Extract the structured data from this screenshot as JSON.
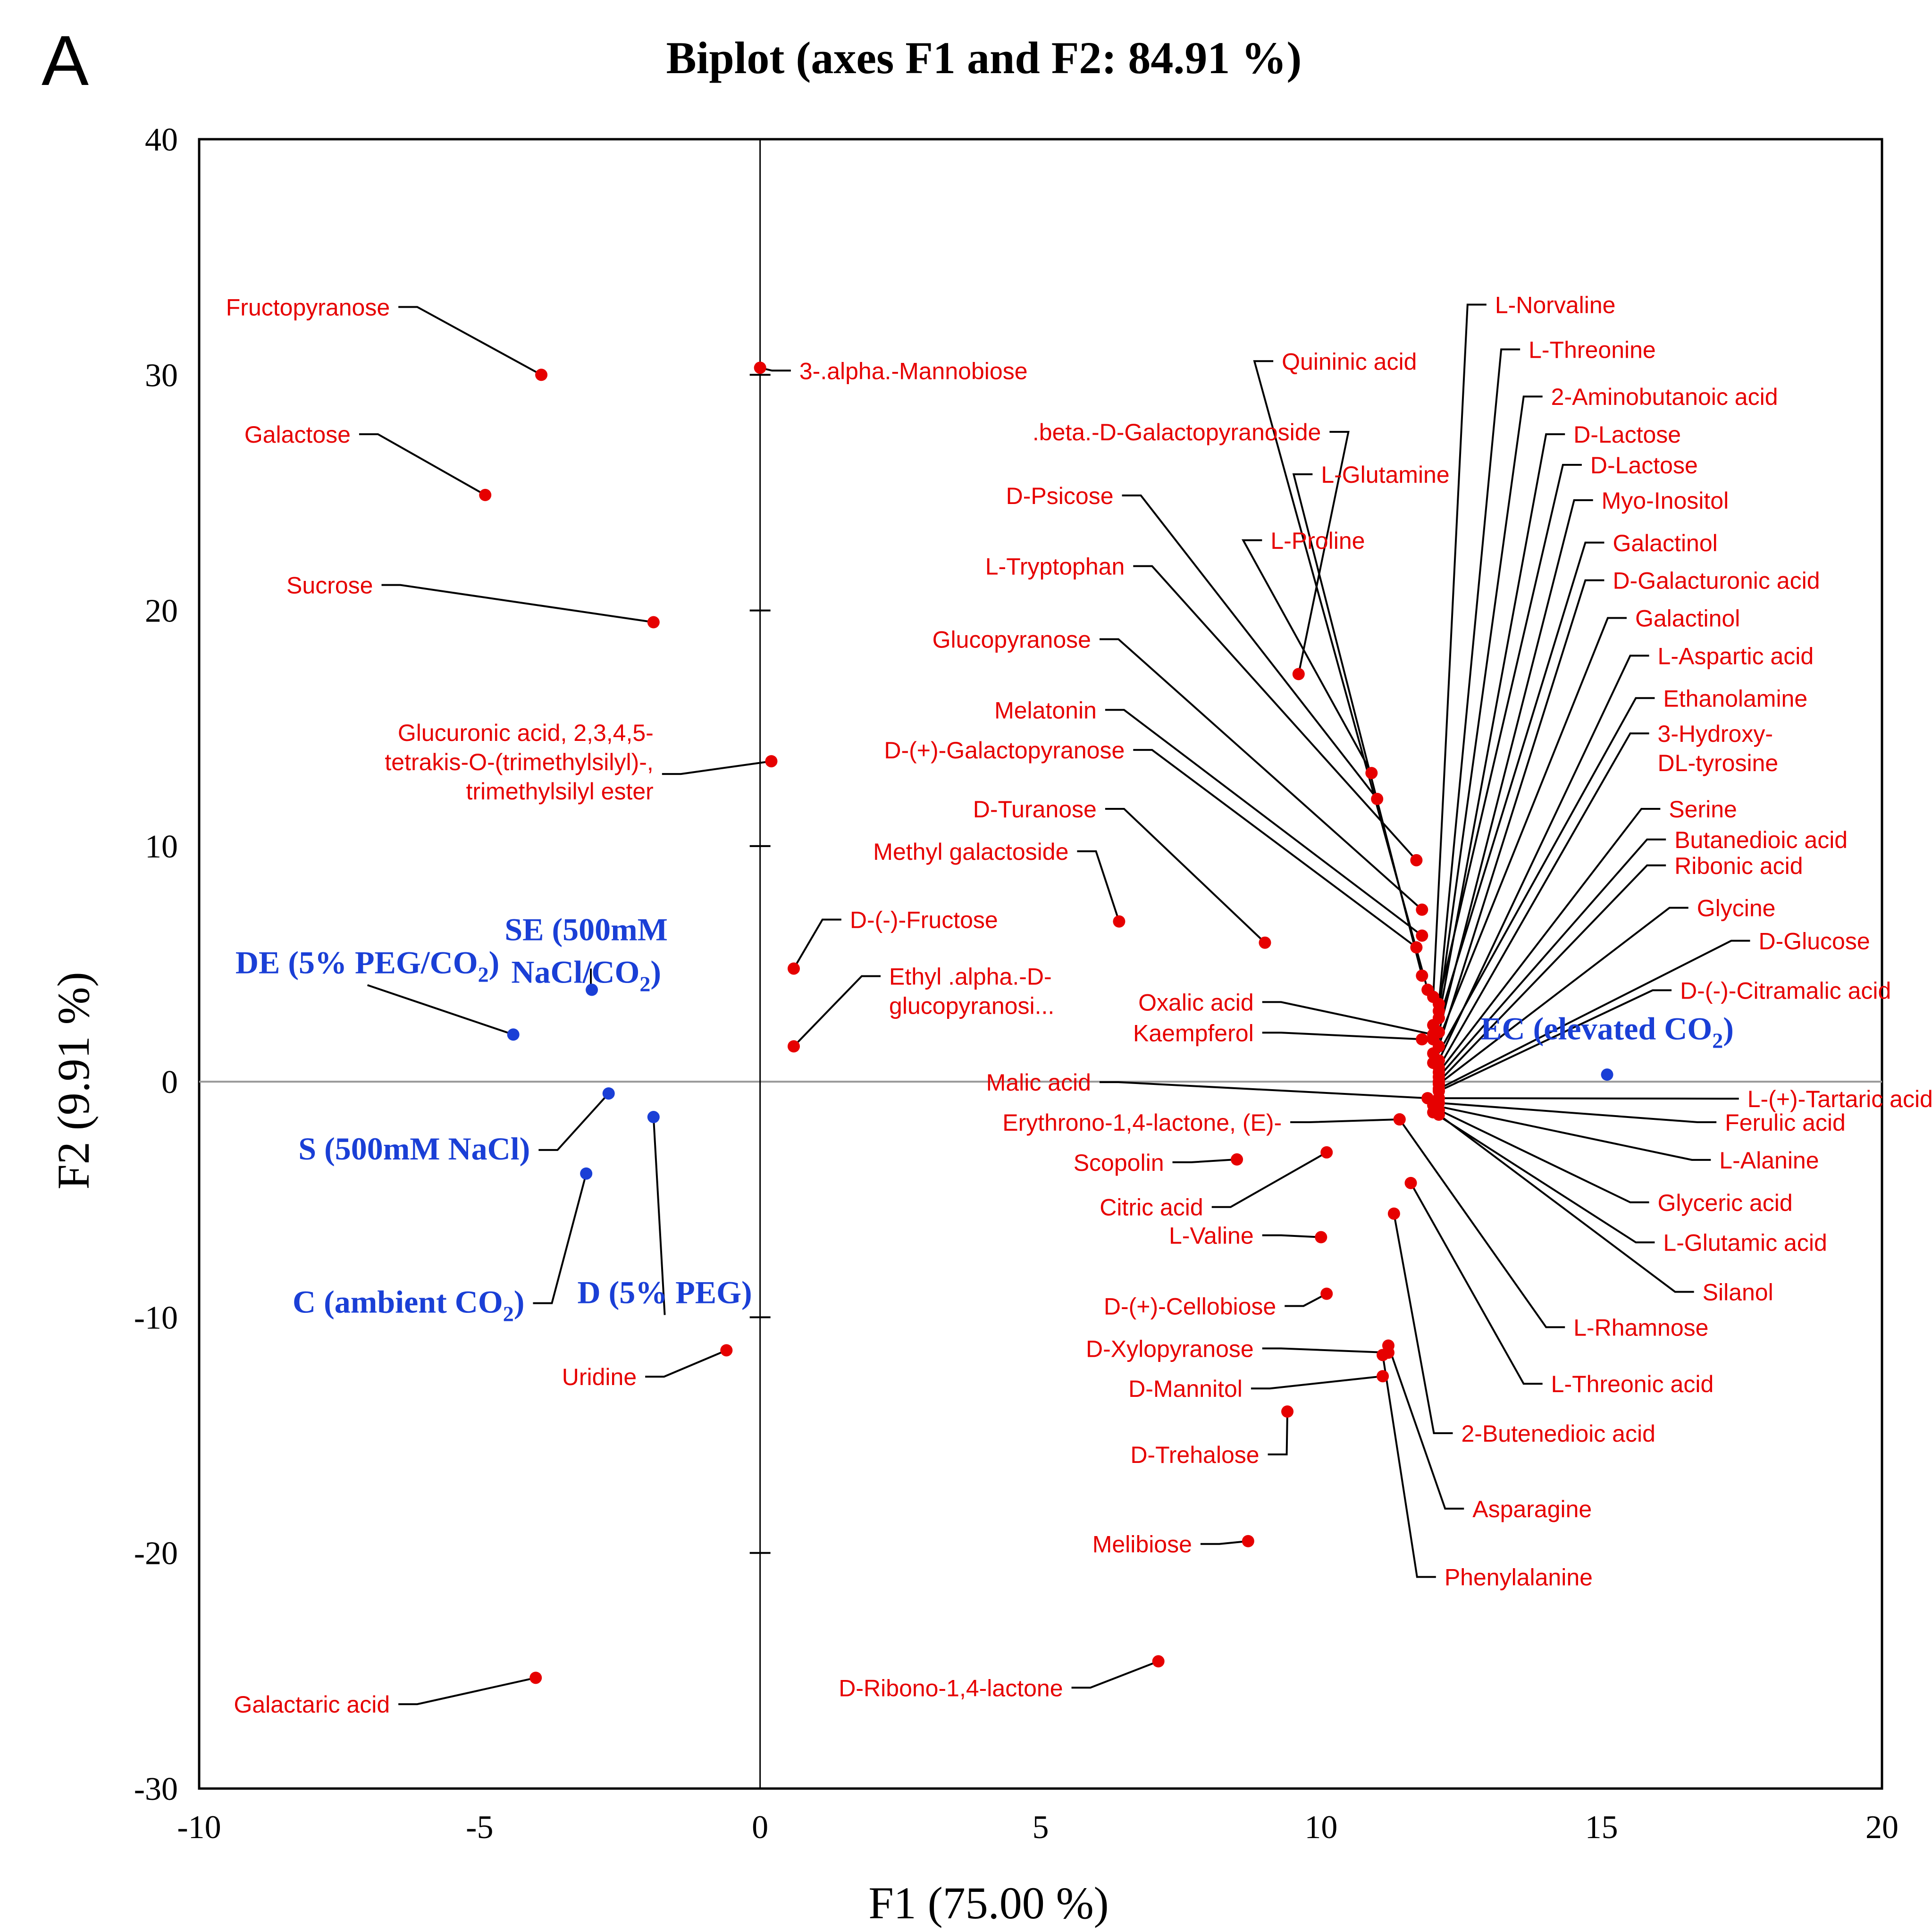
{
  "panel_letter": "A",
  "chart_data": {
    "type": "scatter",
    "title": "Biplot (axes F1 and F2: 84.91 %)",
    "xlabel": "F1 (75.00 %)",
    "ylabel": "F2 (9.91 %)",
    "xlim": [
      -10,
      20
    ],
    "ylim": [
      -30,
      40
    ],
    "xticks": [
      -10,
      -5,
      0,
      5,
      10,
      15,
      20
    ],
    "yticks": [
      -30,
      -20,
      -10,
      0,
      10,
      20,
      30,
      40
    ],
    "colors": {
      "variables": "#e60000",
      "observations": "#1a3fd6",
      "axes": "#000000",
      "zero_line": "#9a9a9a"
    },
    "observations": [
      {
        "name": "EC (elevated CO2)",
        "lines": [
          "EC (elevated CO",
          "2",
          ")"
        ],
        "x": 15.1,
        "y": 0.3,
        "lx": 15.1,
        "ly": 1.8,
        "anchor": "middle"
      },
      {
        "name": "SE (500mM NaCl/CO2)",
        "lines": [
          "SE (500mM",
          "NaCl/CO",
          "2",
          ")"
        ],
        "x": -3.0,
        "y": 3.9,
        "lx": -3.1,
        "ly": 6.0,
        "anchor": "middle"
      },
      {
        "name": "DE (5% PEG/CO2)",
        "lines": [
          "DE (5% PEG/CO",
          "2",
          ")"
        ],
        "x": -4.4,
        "y": 2.0,
        "lx": -7.0,
        "ly": 4.6,
        "anchor": "middle"
      },
      {
        "name": "S (500mM NaCl)",
        "lines": [
          "S (500mM NaCl)"
        ],
        "x": -2.7,
        "y": -0.5,
        "lx": -4.1,
        "ly": -3.3,
        "anchor": "end"
      },
      {
        "name": "D (5% PEG)",
        "lines": [
          "D (5% PEG)"
        ],
        "x": -1.9,
        "y": -1.5,
        "lx": -1.7,
        "ly": -9.4,
        "anchor": "middle"
      },
      {
        "name": "C (ambient CO2)",
        "lines": [
          "C (ambient CO",
          "2",
          ")"
        ],
        "x": -3.1,
        "y": -3.9,
        "lx": -4.2,
        "ly": -9.8,
        "anchor": "end"
      }
    ],
    "variables": [
      {
        "name": "Fructopyranose",
        "x": -3.9,
        "y": 30.0,
        "lx": -6.6,
        "ly": 32.6,
        "anchor": "end"
      },
      {
        "name": "Galactose",
        "x": -4.9,
        "y": 24.9,
        "lx": -7.3,
        "ly": 27.2,
        "anchor": "end"
      },
      {
        "name": "Sucrose",
        "x": -1.9,
        "y": 19.5,
        "lx": -6.9,
        "ly": 20.8,
        "anchor": "end"
      },
      {
        "name": "3-.alpha.-Mannobiose",
        "x": 0.0,
        "y": 30.3,
        "lx": 0.7,
        "ly": 29.9,
        "anchor": "start"
      },
      {
        "name": "Glucuronic acid, 2,3,4,5-tetrakis-O-(trimethylsilyl)-, trimethylsilyl ester",
        "lines": [
          "Glucuronic acid, 2,3,4,5-",
          "tetrakis-O-(trimethylsilyl)-,",
          "trimethylsilyl ester"
        ],
        "x": 0.2,
        "y": 13.6,
        "lx": -1.9,
        "ly": 13.3,
        "anchor": "end"
      },
      {
        "name": "D-(-)-Fructose",
        "x": 0.6,
        "y": 4.8,
        "lx": 1.6,
        "ly": 6.6,
        "anchor": "start"
      },
      {
        "name": "Ethyl .alpha.-D-glucopyranosi...",
        "lines": [
          "Ethyl .alpha.-D-",
          "glucopyranosi..."
        ],
        "x": 0.6,
        "y": 1.5,
        "lx": 2.3,
        "ly": 4.2,
        "anchor": "start"
      },
      {
        "name": "Uridine",
        "x": -0.6,
        "y": -11.4,
        "lx": -2.2,
        "ly": -12.8,
        "anchor": "end"
      },
      {
        "name": "Galactaric acid",
        "x": -4.0,
        "y": -25.3,
        "lx": -6.6,
        "ly": -26.7,
        "anchor": "end"
      },
      {
        "name": "D-Ribono-1,4-lactone",
        "x": 7.1,
        "y": -24.6,
        "lx": 5.4,
        "ly": -26.0,
        "anchor": "end"
      },
      {
        "name": "Melibiose",
        "x": 8.7,
        "y": -19.5,
        "lx": 7.7,
        "ly": -19.9,
        "anchor": "end"
      },
      {
        "name": "D-Trehalose",
        "x": 9.4,
        "y": -14.0,
        "lx": 8.9,
        "ly": -16.1,
        "anchor": "end"
      },
      {
        "name": "D-Mannitol",
        "x": 11.1,
        "y": -12.5,
        "lx": 8.6,
        "ly": -13.3,
        "anchor": "end"
      },
      {
        "name": "D-Xylopyranose",
        "x": 11.2,
        "y": -11.5,
        "lx": 8.8,
        "ly": -11.6,
        "anchor": "end"
      },
      {
        "name": "D-(+)-Cellobiose",
        "x": 10.1,
        "y": -9.0,
        "lx": 9.2,
        "ly": -9.8,
        "anchor": "end"
      },
      {
        "name": "L-Valine",
        "x": 10.0,
        "y": -6.6,
        "lx": 8.8,
        "ly": -6.8,
        "anchor": "end"
      },
      {
        "name": "Citric acid",
        "x": 10.1,
        "y": -3.0,
        "lx": 7.9,
        "ly": -5.6,
        "anchor": "end"
      },
      {
        "name": "Scopolin",
        "x": 8.5,
        "y": -3.3,
        "lx": 7.2,
        "ly": -3.7,
        "anchor": "end"
      },
      {
        "name": "Erythrono-1,4-lactone, (E)-",
        "x": 11.4,
        "y": -1.6,
        "lx": 9.3,
        "ly": -2.0,
        "anchor": "end"
      },
      {
        "name": "Malic acid",
        "x": 11.9,
        "y": -0.7,
        "lx": 5.9,
        "ly": -0.3,
        "anchor": "end"
      },
      {
        "name": "Kaempferol",
        "x": 11.8,
        "y": 1.8,
        "lx": 8.8,
        "ly": 1.8,
        "anchor": "end"
      },
      {
        "name": "Oxalic acid",
        "x": 12.0,
        "y": 2.0,
        "lx": 8.8,
        "ly": 3.1,
        "anchor": "end"
      },
      {
        "name": "Methyl galactoside",
        "x": 6.4,
        "y": 6.8,
        "lx": 5.5,
        "ly": 9.5,
        "anchor": "end"
      },
      {
        "name": "D-Turanose",
        "x": 9.0,
        "y": 5.9,
        "lx": 6.0,
        "ly": 11.3,
        "anchor": "end"
      },
      {
        "name": "D-(+)-Galactopyranose",
        "x": 11.7,
        "y": 5.7,
        "lx": 6.5,
        "ly": 13.8,
        "anchor": "end"
      },
      {
        "name": "Melatonin",
        "x": 11.8,
        "y": 6.2,
        "lx": 6.0,
        "ly": 15.5,
        "anchor": "end"
      },
      {
        "name": "Glucopyranose",
        "x": 11.8,
        "y": 7.3,
        "lx": 5.9,
        "ly": 18.5,
        "anchor": "end"
      },
      {
        "name": "L-Tryptophan",
        "x": 11.7,
        "y": 9.4,
        "lx": 6.5,
        "ly": 21.6,
        "anchor": "end"
      },
      {
        "name": "D-Psicose",
        "x": 11.0,
        "y": 12.0,
        "lx": 6.3,
        "ly": 24.6,
        "anchor": "end"
      },
      {
        "name": ".beta.-D-Galactopyranoside",
        "x": 9.6,
        "y": 17.3,
        "lx": 10.0,
        "ly": 27.3,
        "anchor": "end"
      },
      {
        "name": "L-Proline",
        "x": 10.9,
        "y": 13.1,
        "lx": 9.1,
        "ly": 22.7,
        "anchor": "start"
      },
      {
        "name": "L-Glutamine",
        "x": 11.8,
        "y": 4.5,
        "lx": 10.0,
        "ly": 25.5,
        "anchor": "start"
      },
      {
        "name": "Quininic acid",
        "x": 11.9,
        "y": 3.9,
        "lx": 9.3,
        "ly": 30.3,
        "anchor": "start"
      },
      {
        "name": "L-Norvaline",
        "x": 12.0,
        "y": 3.6,
        "lx": 13.1,
        "ly": 32.7,
        "anchor": "start"
      },
      {
        "name": "L-Threonine",
        "x": 12.1,
        "y": 3.3,
        "lx": 13.7,
        "ly": 30.8,
        "anchor": "start"
      },
      {
        "name": "2-Aminobutanoic acid",
        "x": 12.1,
        "y": 3.0,
        "lx": 14.1,
        "ly": 28.8,
        "anchor": "start"
      },
      {
        "name": "D-Lactose",
        "x": 12.1,
        "y": 2.7,
        "lx": 14.5,
        "ly": 27.2,
        "anchor": "start"
      },
      {
        "name": "D-Lactose",
        "x": 12.0,
        "y": 2.4,
        "lx": 14.8,
        "ly": 25.9,
        "anchor": "start"
      },
      {
        "name": "Myo-Inositol",
        "x": 12.1,
        "y": 2.1,
        "lx": 15.0,
        "ly": 24.4,
        "anchor": "start"
      },
      {
        "name": "Galactinol",
        "x": 12.0,
        "y": 1.8,
        "lx": 15.2,
        "ly": 22.6,
        "anchor": "start"
      },
      {
        "name": "D-Galacturonic acid",
        "x": 12.1,
        "y": 1.5,
        "lx": 15.2,
        "ly": 21.0,
        "anchor": "start"
      },
      {
        "name": "Galactinol",
        "x": 12.0,
        "y": 1.2,
        "lx": 15.6,
        "ly": 19.4,
        "anchor": "start"
      },
      {
        "name": "L-Aspartic acid",
        "x": 12.1,
        "y": 0.9,
        "lx": 16.0,
        "ly": 17.8,
        "anchor": "start"
      },
      {
        "name": "Ethanolamine",
        "x": 12.0,
        "y": 0.8,
        "lx": 16.1,
        "ly": 16.0,
        "anchor": "start"
      },
      {
        "name": "3-Hydroxy-DL-tyrosine",
        "lines": [
          "3-Hydroxy-",
          "DL-tyrosine"
        ],
        "x": 12.1,
        "y": 0.6,
        "lx": 16.0,
        "ly": 14.5,
        "anchor": "start"
      },
      {
        "name": "Serine",
        "x": 12.1,
        "y": 0.4,
        "lx": 16.2,
        "ly": 11.3,
        "anchor": "start"
      },
      {
        "name": "Butanedioic acid",
        "x": 12.1,
        "y": 0.2,
        "lx": 16.3,
        "ly": 10.0,
        "anchor": "start"
      },
      {
        "name": "Ribonic acid",
        "x": 12.1,
        "y": 0.0,
        "lx": 16.3,
        "ly": 8.9,
        "anchor": "start"
      },
      {
        "name": "Glycine",
        "x": 12.1,
        "y": -0.1,
        "lx": 16.7,
        "ly": 7.1,
        "anchor": "start"
      },
      {
        "name": "D-Glucose",
        "x": 12.1,
        "y": -0.3,
        "lx": 17.8,
        "ly": 5.7,
        "anchor": "start"
      },
      {
        "name": "D-(-)-Citramalic acid",
        "x": 12.1,
        "y": -0.4,
        "lx": 16.4,
        "ly": 3.6,
        "anchor": "start"
      },
      {
        "name": "L-(+)-Tartaric acid",
        "x": 12.1,
        "y": -0.7,
        "lx": 17.6,
        "ly": -1.0,
        "anchor": "start"
      },
      {
        "name": "Ferulic acid",
        "x": 12.1,
        "y": -0.9,
        "lx": 17.2,
        "ly": -2.0,
        "anchor": "start"
      },
      {
        "name": "L-Alanine",
        "x": 12.0,
        "y": -1.0,
        "lx": 17.1,
        "ly": -3.6,
        "anchor": "start"
      },
      {
        "name": "Glyceric acid",
        "x": 12.1,
        "y": -1.2,
        "lx": 16.0,
        "ly": -5.4,
        "anchor": "start"
      },
      {
        "name": "L-Glutamic acid",
        "x": 12.0,
        "y": -1.3,
        "lx": 16.1,
        "ly": -7.1,
        "anchor": "start"
      },
      {
        "name": "Silanol",
        "x": 12.1,
        "y": -1.4,
        "lx": 16.8,
        "ly": -9.2,
        "anchor": "start"
      },
      {
        "name": "L-Rhamnose",
        "x": 11.4,
        "y": -1.6,
        "lx": 14.5,
        "ly": -10.7,
        "anchor": "start"
      },
      {
        "name": "L-Threonic acid",
        "x": 11.6,
        "y": -4.3,
        "lx": 14.1,
        "ly": -13.1,
        "anchor": "start"
      },
      {
        "name": "2-Butenedioic acid",
        "x": 11.3,
        "y": -5.6,
        "lx": 12.5,
        "ly": -15.2,
        "anchor": "start"
      },
      {
        "name": "Asparagine",
        "x": 11.2,
        "y": -11.2,
        "lx": 12.7,
        "ly": -18.4,
        "anchor": "start"
      },
      {
        "name": "Phenylalanine",
        "x": 11.1,
        "y": -11.6,
        "lx": 12.2,
        "ly": -21.3,
        "anchor": "start"
      }
    ]
  }
}
